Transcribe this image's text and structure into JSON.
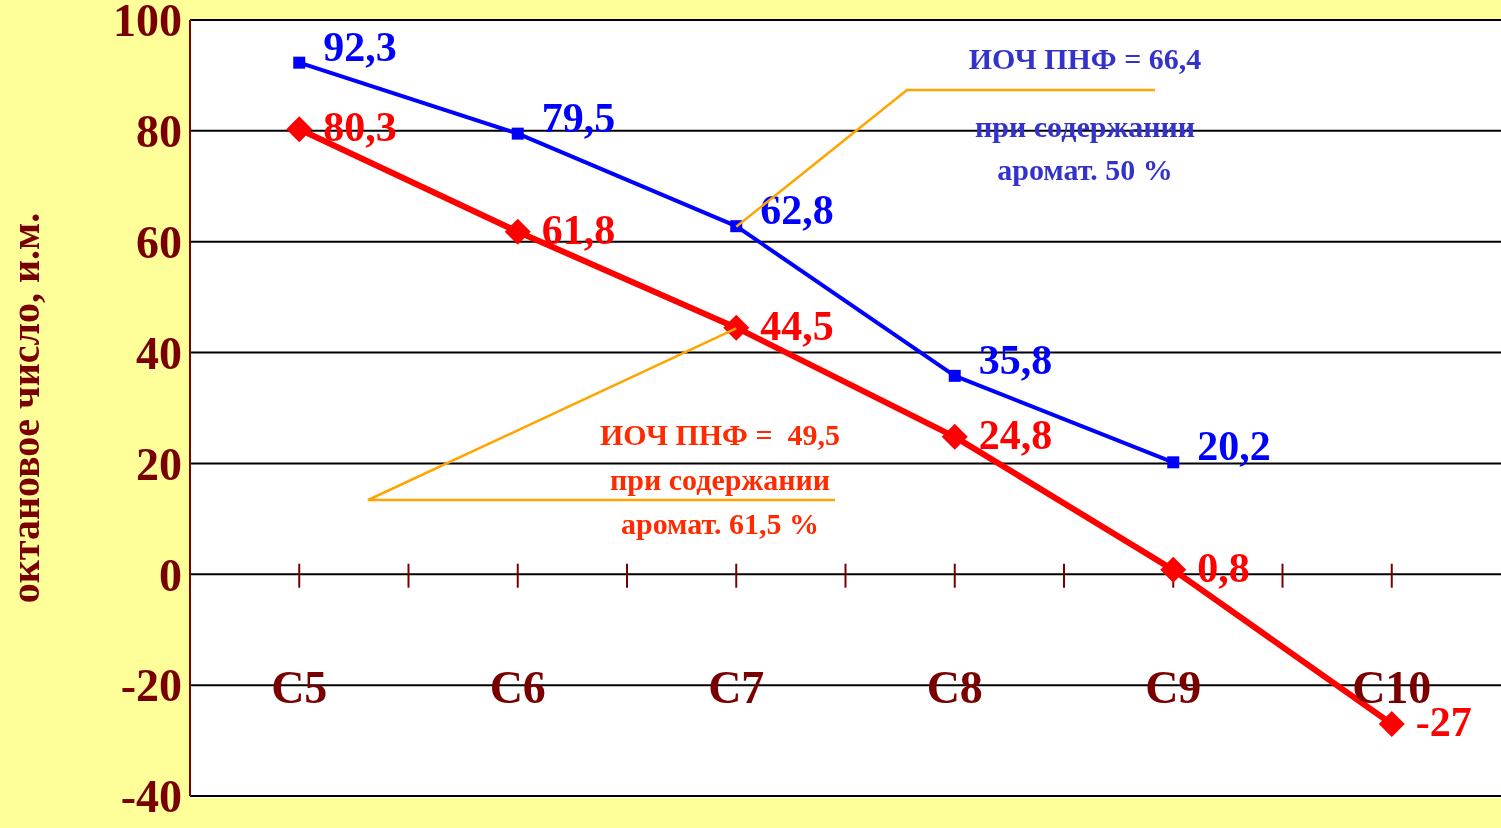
{
  "chart_data": {
    "type": "line",
    "ylabel": "октановое число, и.м.",
    "categories": [
      "C5",
      "C6",
      "C7",
      "C8",
      "C9",
      "C10"
    ],
    "series": [
      {
        "color": "#0000ff",
        "marker": "square",
        "values": [
          92.3,
          79.5,
          62.8,
          35.8,
          20.2,
          null
        ],
        "value_labels": [
          "92,3",
          "79,5",
          "62,8",
          "35,8",
          "20,2",
          null
        ]
      },
      {
        "color": "#ff0000",
        "marker": "diamond",
        "values": [
          80.3,
          61.8,
          44.5,
          24.8,
          0.8,
          -27
        ],
        "value_labels": [
          "80,3",
          "61,8",
          "44,5",
          "24,8",
          "0,8",
          "-27"
        ]
      }
    ],
    "ylim": [
      -40,
      100
    ],
    "yticks": [
      -40,
      -20,
      0,
      20,
      40,
      60,
      80,
      100
    ],
    "grid": "y",
    "legend": false,
    "annotations": [
      {
        "text": "ИОЧ ПНФ = 66,4",
        "x": "C7",
        "y": 62.8
      },
      "при содержании",
      "аромат. 50 %",
      "ИОЧ ПНФ =  49,5",
      {
        "text": "при содержании",
        "x": "C7",
        "y": 44.5
      },
      "аромат. 61,5 %"
    ]
  }
}
